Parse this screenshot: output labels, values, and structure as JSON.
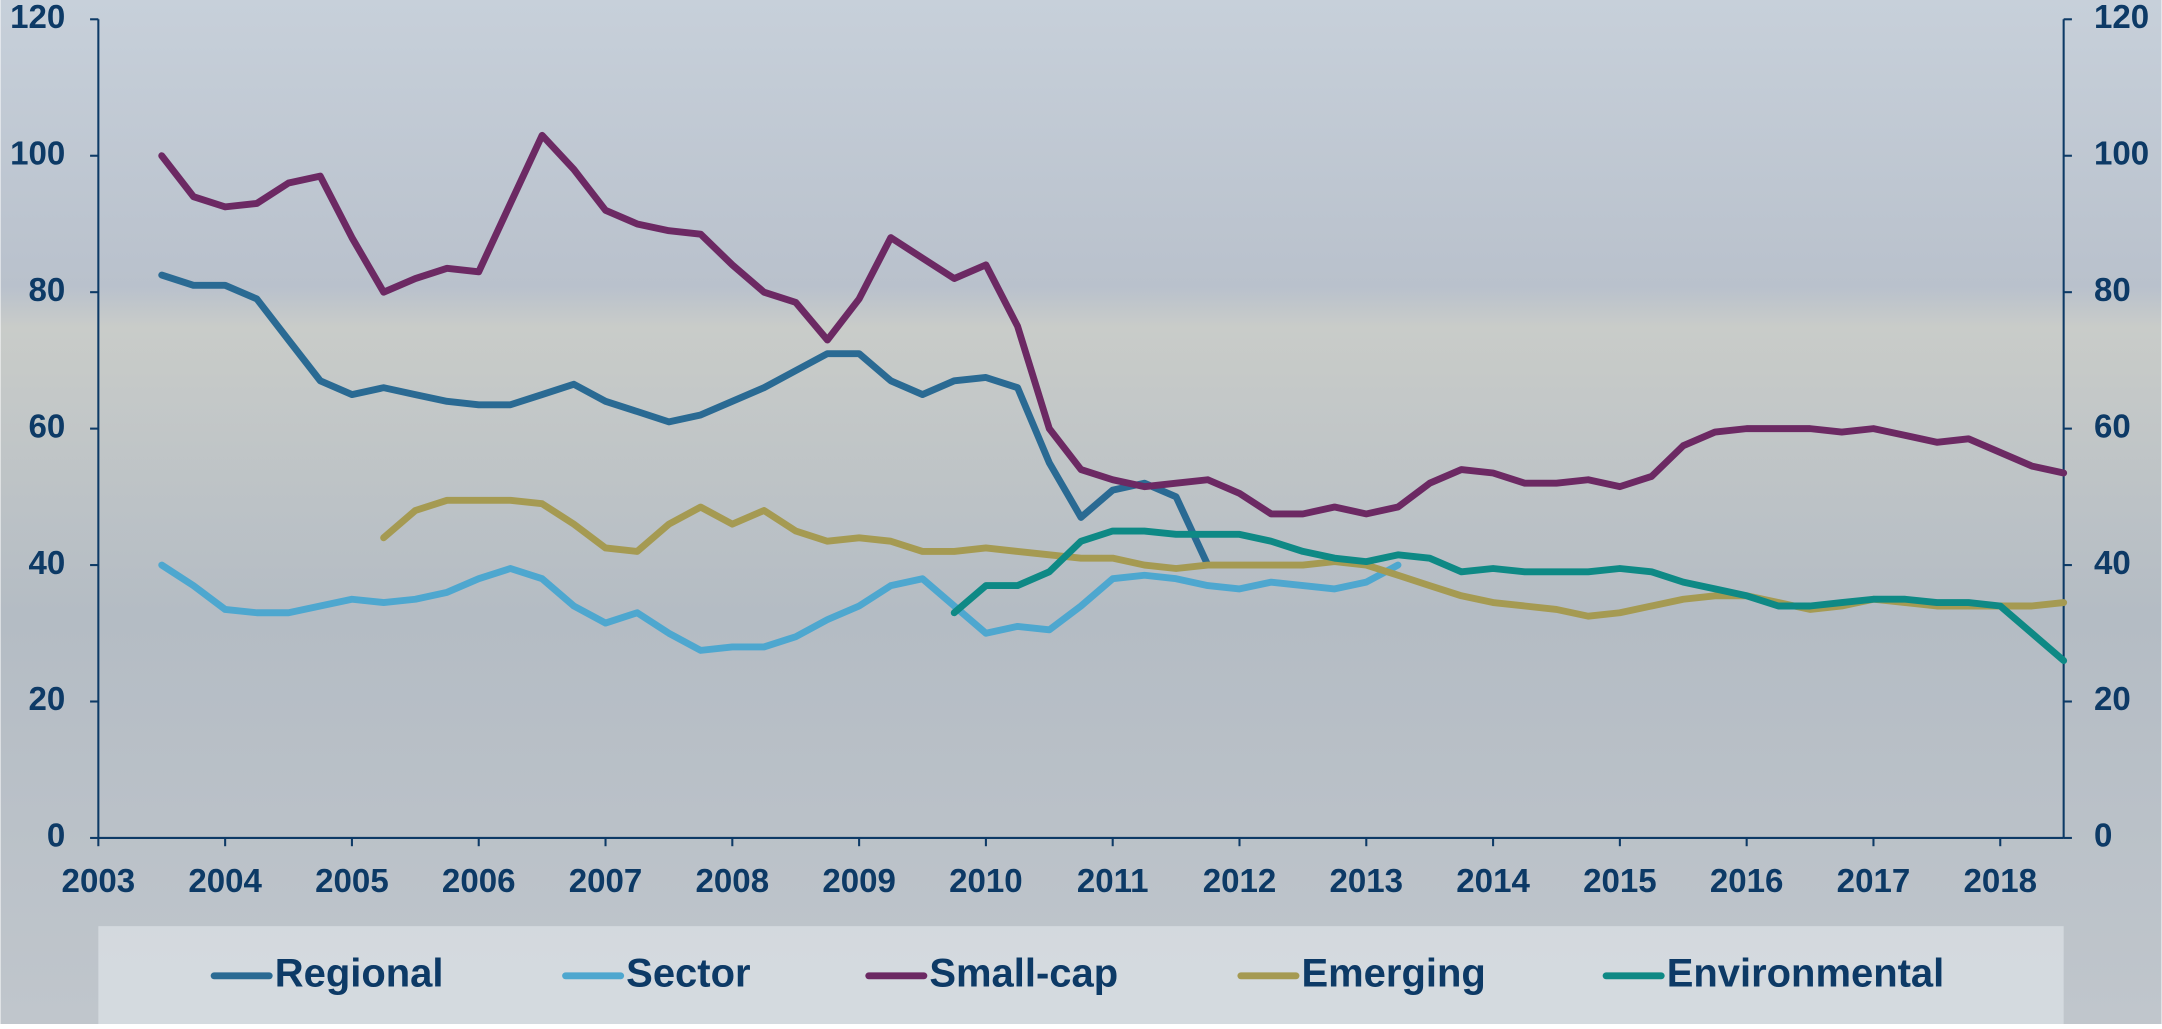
{
  "chart_data": {
    "type": "line",
    "x": [
      2003.5,
      2003.75,
      2004,
      2004.25,
      2004.5,
      2004.75,
      2005,
      2005.25,
      2005.5,
      2005.75,
      2006,
      2006.25,
      2006.5,
      2006.75,
      2007,
      2007.25,
      2007.5,
      2007.75,
      2008,
      2008.25,
      2008.5,
      2008.75,
      2009,
      2009.25,
      2009.5,
      2009.75,
      2010,
      2010.25,
      2010.5,
      2010.75,
      2011,
      2011.25,
      2011.5,
      2011.75,
      2012,
      2012.25,
      2012.5,
      2012.75,
      2013,
      2013.25,
      2013.5,
      2013.75,
      2014,
      2014.25,
      2014.5,
      2014.75,
      2015,
      2015.25,
      2015.5,
      2015.75,
      2016,
      2016.25,
      2016.5,
      2016.75,
      2017,
      2017.25,
      2017.5,
      2017.75,
      2018,
      2018.25,
      2018.5
    ],
    "series": [
      {
        "name": "Regional",
        "color": "#2a6a93",
        "values": [
          82.5,
          81,
          81,
          79,
          73,
          67,
          65,
          66,
          65,
          64,
          63.5,
          63.5,
          65,
          66.5,
          64,
          62.5,
          61,
          62,
          64,
          66,
          68.5,
          71,
          71,
          67,
          65,
          67,
          67.5,
          66,
          55,
          47,
          51,
          52,
          50,
          40,
          null,
          null,
          null,
          null,
          null,
          null,
          null,
          null,
          null,
          null,
          null,
          null,
          null,
          null,
          null,
          null,
          null,
          null,
          null,
          null,
          null,
          null,
          null,
          null,
          null,
          null,
          null
        ]
      },
      {
        "name": "Sector",
        "color": "#4ea7cf",
        "values": [
          40,
          37,
          33.5,
          33,
          33,
          34,
          35,
          34.5,
          35,
          36,
          38,
          39.5,
          38,
          34,
          31.5,
          33,
          30,
          27.5,
          28,
          28,
          29.5,
          32,
          34,
          37,
          38,
          34,
          30,
          31,
          30.5,
          34,
          38,
          38.5,
          38,
          37,
          36.5,
          37.5,
          37,
          36.5,
          37.5,
          40,
          null,
          null,
          null,
          null,
          null,
          null,
          null,
          null,
          null,
          null,
          null,
          null,
          null,
          null,
          null,
          null,
          null,
          null,
          null,
          null,
          null
        ]
      },
      {
        "name": "Small-cap",
        "color": "#6c2963",
        "values": [
          100,
          94,
          92.5,
          93,
          96,
          97,
          88,
          80,
          82,
          83.5,
          83,
          93,
          103,
          98,
          92,
          90,
          89,
          88.5,
          84,
          80,
          78.5,
          73,
          79,
          88,
          85,
          82,
          84,
          75,
          60,
          54,
          52.5,
          51.5,
          52,
          52.5,
          50.5,
          47.5,
          47.5,
          48.5,
          47.5,
          48.5,
          52,
          54,
          53.5,
          52,
          52,
          52.5,
          51.5,
          53,
          57.5,
          59.5,
          60,
          60,
          60,
          59.5,
          60,
          59,
          58,
          58.5,
          56.5,
          54.5,
          53.5
        ]
      },
      {
        "name": "Emerging",
        "color": "#a59a52",
        "values": [
          null,
          null,
          null,
          null,
          null,
          null,
          null,
          44,
          48,
          49.5,
          49.5,
          49.5,
          49,
          46,
          42.5,
          42,
          46,
          48.5,
          46,
          48,
          45,
          43.5,
          44,
          43.5,
          42,
          42,
          42.5,
          42,
          41.5,
          41,
          41,
          40,
          39.5,
          40,
          40,
          40,
          40,
          40.5,
          40,
          38.5,
          37,
          35.5,
          34.5,
          34,
          33.5,
          32.5,
          33,
          34,
          35,
          35.5,
          35.5,
          34.5,
          33.5,
          34,
          35,
          34.5,
          34,
          34,
          34,
          34,
          34.5
        ]
      },
      {
        "name": "Environmental",
        "color": "#0e8985",
        "values": [
          null,
          null,
          null,
          null,
          null,
          null,
          null,
          null,
          null,
          null,
          null,
          null,
          null,
          null,
          null,
          null,
          null,
          null,
          null,
          null,
          null,
          null,
          null,
          null,
          null,
          33,
          37,
          37,
          39,
          43.5,
          45,
          45,
          44.5,
          44.5,
          44.5,
          43.5,
          42,
          41,
          40.5,
          41.5,
          41,
          39,
          39.5,
          39,
          39,
          39,
          39.5,
          39,
          37.5,
          36.5,
          35.5,
          34,
          34,
          34.5,
          35,
          35,
          34.5,
          34.5,
          34,
          30,
          26
        ]
      }
    ],
    "xlim": [
      2003,
      2018.5
    ],
    "xticks": [
      2003,
      2004,
      2005,
      2006,
      2007,
      2008,
      2009,
      2010,
      2011,
      2012,
      2013,
      2014,
      2015,
      2016,
      2017,
      2018
    ],
    "ylim": [
      0,
      120
    ],
    "yticks": [
      0,
      20,
      40,
      60,
      80,
      100,
      120
    ],
    "y2lim": [
      0,
      120
    ],
    "y2ticks": [
      0,
      20,
      40,
      60,
      80,
      100,
      120
    ],
    "legend": "bottom",
    "text_color": "#0d3a66"
  }
}
